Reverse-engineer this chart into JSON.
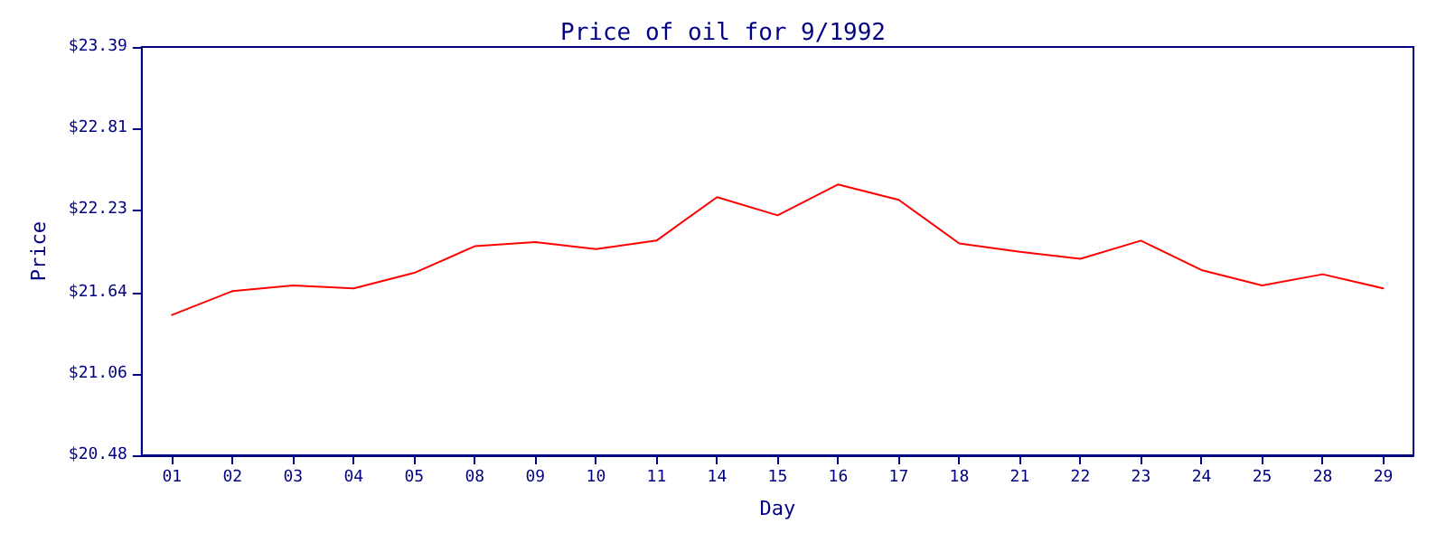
{
  "chart_data": {
    "type": "line",
    "title": "Price of oil for 9/1992",
    "xlabel": "Day",
    "ylabel": "Price",
    "categories": [
      "01",
      "02",
      "03",
      "04",
      "05",
      "08",
      "09",
      "10",
      "11",
      "14",
      "15",
      "16",
      "17",
      "18",
      "21",
      "22",
      "23",
      "24",
      "25",
      "28",
      "29"
    ],
    "series": [
      {
        "color": "#ff0000",
        "values": [
          21.48,
          21.65,
          21.69,
          21.67,
          21.78,
          21.97,
          22.0,
          21.95,
          22.01,
          22.32,
          22.19,
          22.41,
          22.3,
          21.99,
          21.93,
          21.88,
          22.01,
          21.8,
          21.69,
          21.77,
          21.67
        ]
      }
    ],
    "ylim": [
      20.48,
      23.39
    ],
    "yticks": [
      {
        "value": 20.48,
        "label": "$20.48"
      },
      {
        "value": 21.06,
        "label": "$21.06"
      },
      {
        "value": 21.64,
        "label": "$21.64"
      },
      {
        "value": 22.23,
        "label": "$22.23"
      },
      {
        "value": 22.81,
        "label": "$22.81"
      },
      {
        "value": 23.39,
        "label": "$23.39"
      }
    ],
    "marker": "none",
    "line_style": "solid"
  }
}
